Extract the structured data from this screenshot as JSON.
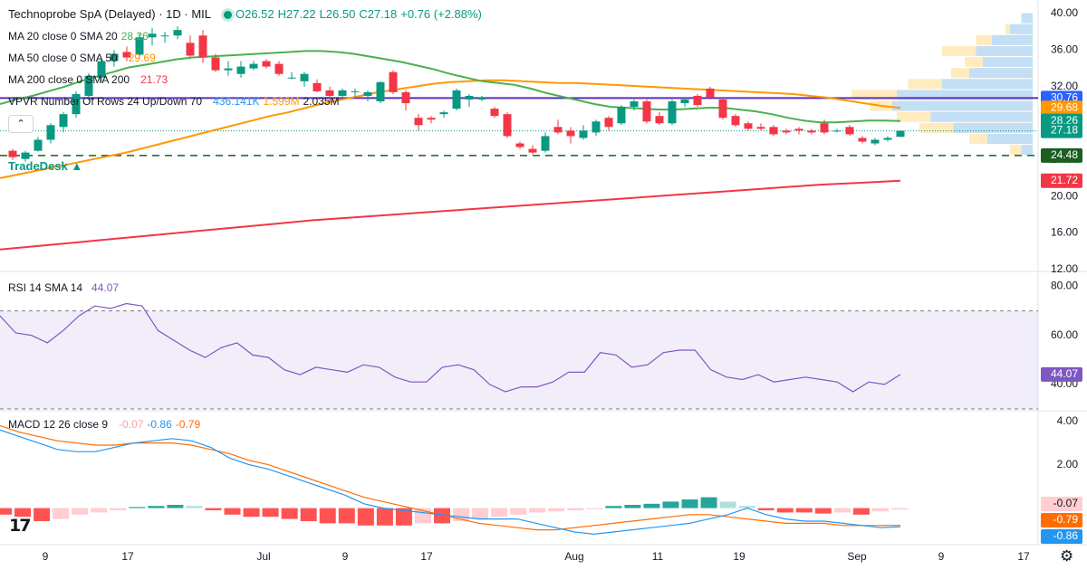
{
  "header": {
    "title": "Technoprobe SpA (Delayed) · 1D · MIL",
    "ohlc": {
      "o": "O26.52",
      "h": "H27.22",
      "l": "L26.50",
      "c": "C27.18",
      "chg": "+0.76 (+2.88%)"
    }
  },
  "indicators": {
    "ma20": {
      "label": "MA 20 close 0 SMA 20",
      "value": "28.26",
      "color": "#4caf50"
    },
    "ma50": {
      "label": "MA 50 close 0 SMA 50",
      "value": "29.69",
      "color": "#ff9800"
    },
    "ma200": {
      "label": "MA 200 close 0 SMA 200",
      "value": "21.73",
      "color": "#f23645"
    },
    "vpvr": {
      "label": "VPVR Number Of Rows 24 Up/Down 70",
      "v1": "436.141K",
      "v2": "1.599M",
      "v3": "2.035M"
    },
    "tradedesk": "TradeDesk"
  },
  "rsi": {
    "label": "RSI 14 SMA 14",
    "value": "44.07",
    "color": "#7e57c2"
  },
  "macd": {
    "label": "MACD 12 26 close 9",
    "hist": "-0.07",
    "macd": "-0.86",
    "signal": "-0.79"
  },
  "price_axis": {
    "ticks": [
      "40.00",
      "36.00",
      "32.00",
      "28.00",
      "24.00",
      "20.00",
      "16.00",
      "12.00"
    ],
    "badges": [
      {
        "text": "30.76",
        "value": 30.76,
        "color": "#2962ff"
      },
      {
        "text": "29.68",
        "value": 29.68,
        "color": "#ff9800"
      },
      {
        "text": "28.26",
        "value": 28.26,
        "color": "#089981"
      },
      {
        "text": "27.18",
        "value": 27.18,
        "color": "#089981"
      },
      {
        "text": "24.48",
        "value": 24.48,
        "color": "#1b5e20"
      },
      {
        "text": "21.72",
        "value": 21.72,
        "color": "#f23645"
      }
    ]
  },
  "rsi_axis": {
    "ticks": [
      "80.00",
      "60.00",
      "40.00"
    ],
    "badge": "44.07"
  },
  "macd_axis": {
    "ticks": [
      "4.00",
      "2.00"
    ],
    "badges": [
      {
        "text": "-0.07",
        "value": -0.07,
        "color": "#ffcdd2",
        "fg": "#131722"
      },
      {
        "text": "-0.79",
        "value": -0.79,
        "color": "#ff6d00",
        "fg": "#ffffff"
      },
      {
        "text": "-0.86",
        "value": -0.86,
        "color": "#2196f3",
        "fg": "#ffffff"
      }
    ]
  },
  "time_axis": {
    "labels": [
      "9",
      "17",
      "Jul",
      "9",
      "17",
      "Aug",
      "11",
      "19",
      "Sep",
      "9",
      "17"
    ]
  },
  "chart_data": {
    "type": "candlestick",
    "price_ylim": [
      12,
      40
    ],
    "candles": [
      {
        "o": 25.0,
        "h": 25.2,
        "l": 24.0,
        "c": 24.3
      },
      {
        "o": 24.1,
        "h": 25.0,
        "l": 23.8,
        "c": 24.8
      },
      {
        "o": 25.0,
        "h": 26.5,
        "l": 24.9,
        "c": 26.2
      },
      {
        "o": 26.2,
        "h": 28.0,
        "l": 25.8,
        "c": 27.8
      },
      {
        "o": 27.6,
        "h": 29.2,
        "l": 27.0,
        "c": 29.0
      },
      {
        "o": 29.0,
        "h": 31.5,
        "l": 28.6,
        "c": 31.2
      },
      {
        "o": 31.0,
        "h": 33.5,
        "l": 30.5,
        "c": 33.2
      },
      {
        "o": 33.0,
        "h": 35.0,
        "l": 32.5,
        "c": 34.8
      },
      {
        "o": 34.8,
        "h": 36.0,
        "l": 34.2,
        "c": 35.6
      },
      {
        "o": 35.8,
        "h": 36.4,
        "l": 34.8,
        "c": 35.2
      },
      {
        "o": 35.5,
        "h": 37.8,
        "l": 35.0,
        "c": 37.4
      },
      {
        "o": 37.4,
        "h": 38.4,
        "l": 36.5,
        "c": 37.8
      },
      {
        "o": 37.5,
        "h": 38.0,
        "l": 36.8,
        "c": 37.6
      },
      {
        "o": 37.6,
        "h": 38.6,
        "l": 37.2,
        "c": 38.2
      },
      {
        "o": 36.8,
        "h": 37.6,
        "l": 35.2,
        "c": 35.4
      },
      {
        "o": 37.6,
        "h": 38.2,
        "l": 34.6,
        "c": 35.2
      },
      {
        "o": 35.2,
        "h": 35.6,
        "l": 33.6,
        "c": 33.8
      },
      {
        "o": 33.8,
        "h": 34.8,
        "l": 33.2,
        "c": 34.0
      },
      {
        "o": 33.4,
        "h": 34.8,
        "l": 33.0,
        "c": 34.2
      },
      {
        "o": 34.0,
        "h": 34.8,
        "l": 33.8,
        "c": 34.5
      },
      {
        "o": 34.8,
        "h": 35.0,
        "l": 34.0,
        "c": 34.2
      },
      {
        "o": 34.5,
        "h": 34.8,
        "l": 33.2,
        "c": 33.4
      },
      {
        "o": 33.0,
        "h": 33.6,
        "l": 32.8,
        "c": 33.0
      },
      {
        "o": 32.6,
        "h": 33.6,
        "l": 32.0,
        "c": 33.4
      },
      {
        "o": 32.4,
        "h": 32.8,
        "l": 31.4,
        "c": 31.5
      },
      {
        "o": 31.6,
        "h": 32.0,
        "l": 30.4,
        "c": 31.0
      },
      {
        "o": 31.0,
        "h": 31.8,
        "l": 30.8,
        "c": 31.6
      },
      {
        "o": 31.4,
        "h": 31.8,
        "l": 30.8,
        "c": 31.5
      },
      {
        "o": 31.0,
        "h": 31.6,
        "l": 30.4,
        "c": 31.4
      },
      {
        "o": 30.4,
        "h": 32.6,
        "l": 30.2,
        "c": 32.5
      },
      {
        "o": 33.6,
        "h": 33.8,
        "l": 31.2,
        "c": 31.4
      },
      {
        "o": 31.4,
        "h": 31.6,
        "l": 29.4,
        "c": 30.2
      },
      {
        "o": 28.6,
        "h": 29.0,
        "l": 27.2,
        "c": 27.8
      },
      {
        "o": 28.6,
        "h": 28.8,
        "l": 28.0,
        "c": 28.4
      },
      {
        "o": 29.0,
        "h": 29.4,
        "l": 28.6,
        "c": 29.2
      },
      {
        "o": 29.6,
        "h": 31.8,
        "l": 29.4,
        "c": 31.6
      },
      {
        "o": 30.6,
        "h": 31.2,
        "l": 29.8,
        "c": 31.0
      },
      {
        "o": 30.6,
        "h": 31.0,
        "l": 30.4,
        "c": 30.8
      },
      {
        "o": 29.6,
        "h": 29.8,
        "l": 28.6,
        "c": 28.8
      },
      {
        "o": 29.0,
        "h": 29.2,
        "l": 26.4,
        "c": 26.6
      },
      {
        "o": 25.8,
        "h": 26.0,
        "l": 25.2,
        "c": 25.4
      },
      {
        "o": 25.2,
        "h": 25.6,
        "l": 24.6,
        "c": 24.8
      },
      {
        "o": 25.0,
        "h": 27.0,
        "l": 24.8,
        "c": 26.6
      },
      {
        "o": 27.6,
        "h": 28.4,
        "l": 26.8,
        "c": 27.0
      },
      {
        "o": 27.2,
        "h": 27.6,
        "l": 25.8,
        "c": 26.6
      },
      {
        "o": 26.4,
        "h": 27.8,
        "l": 26.2,
        "c": 27.2
      },
      {
        "o": 27.0,
        "h": 28.4,
        "l": 26.6,
        "c": 28.2
      },
      {
        "o": 28.6,
        "h": 28.8,
        "l": 27.2,
        "c": 27.6
      },
      {
        "o": 28.0,
        "h": 30.0,
        "l": 27.8,
        "c": 29.8
      },
      {
        "o": 29.8,
        "h": 30.6,
        "l": 29.4,
        "c": 30.4
      },
      {
        "o": 30.4,
        "h": 30.6,
        "l": 28.0,
        "c": 28.2
      },
      {
        "o": 28.8,
        "h": 29.2,
        "l": 27.8,
        "c": 28.0
      },
      {
        "o": 28.0,
        "h": 30.6,
        "l": 27.8,
        "c": 30.4
      },
      {
        "o": 30.2,
        "h": 30.8,
        "l": 29.8,
        "c": 30.6
      },
      {
        "o": 31.0,
        "h": 31.2,
        "l": 29.8,
        "c": 30.0
      },
      {
        "o": 31.8,
        "h": 32.0,
        "l": 30.6,
        "c": 30.8
      },
      {
        "o": 30.6,
        "h": 30.8,
        "l": 28.4,
        "c": 28.6
      },
      {
        "o": 28.8,
        "h": 29.0,
        "l": 27.6,
        "c": 27.8
      },
      {
        "o": 28.0,
        "h": 28.2,
        "l": 27.2,
        "c": 27.4
      },
      {
        "o": 27.6,
        "h": 28.0,
        "l": 27.2,
        "c": 27.4
      },
      {
        "o": 27.6,
        "h": 27.8,
        "l": 26.6,
        "c": 26.8
      },
      {
        "o": 27.2,
        "h": 27.4,
        "l": 26.8,
        "c": 27.0
      },
      {
        "o": 27.4,
        "h": 27.6,
        "l": 26.8,
        "c": 27.2
      },
      {
        "o": 27.2,
        "h": 27.4,
        "l": 26.8,
        "c": 27.0
      },
      {
        "o": 28.0,
        "h": 28.4,
        "l": 26.8,
        "c": 27.0
      },
      {
        "o": 27.2,
        "h": 27.4,
        "l": 27.0,
        "c": 27.2
      },
      {
        "o": 27.6,
        "h": 27.8,
        "l": 26.6,
        "c": 26.8
      },
      {
        "o": 26.4,
        "h": 26.6,
        "l": 25.8,
        "c": 26.0
      },
      {
        "o": 25.8,
        "h": 26.4,
        "l": 25.6,
        "c": 26.2
      },
      {
        "o": 26.2,
        "h": 26.6,
        "l": 26.0,
        "c": 26.4
      },
      {
        "o": 26.52,
        "h": 27.22,
        "l": 26.5,
        "c": 27.18
      }
    ],
    "ma20": [
      30.1,
      30.6,
      31.0,
      31.5,
      32.0,
      32.6,
      33.1,
      33.6,
      34.1,
      34.4,
      34.7,
      35.0,
      35.2,
      35.3,
      35.4,
      35.5,
      35.6,
      35.7,
      35.8,
      35.9,
      35.9,
      35.8,
      35.6,
      35.3,
      35.0,
      34.7,
      34.3,
      33.9,
      33.4,
      33.0,
      32.6,
      32.4,
      32.2,
      31.8,
      31.3,
      30.9,
      30.5,
      30.1,
      29.8,
      29.7,
      29.6,
      29.5,
      29.5,
      29.6,
      29.7,
      29.7,
      29.5,
      29.3,
      29.0,
      28.6,
      28.3,
      28.1,
      28.1,
      28.2,
      28.3,
      28.3,
      28.26
    ],
    "ma50": [
      22.0,
      22.4,
      22.8,
      23.2,
      23.6,
      24.0,
      24.4,
      24.8,
      25.3,
      25.8,
      26.3,
      26.8,
      27.3,
      27.8,
      28.3,
      28.8,
      29.2,
      29.7,
      30.2,
      30.6,
      31.0,
      31.4,
      31.7,
      32.0,
      32.3,
      32.5,
      32.6,
      32.7,
      32.7,
      32.6,
      32.5,
      32.4,
      32.4,
      32.3,
      32.2,
      32.1,
      32.0,
      31.9,
      31.8,
      31.7,
      31.6,
      31.5,
      31.4,
      31.3,
      31.2,
      31.0,
      30.8,
      30.5,
      30.2,
      29.9,
      29.69
    ],
    "ma200": [
      14.2,
      14.6,
      15.0,
      15.4,
      15.8,
      16.2,
      16.6,
      17.0,
      17.4,
      17.7,
      18.0,
      18.3,
      18.6,
      18.9,
      19.2,
      19.5,
      19.8,
      20.1,
      20.4,
      20.7,
      21.0,
      21.3,
      21.5,
      21.73
    ],
    "levels": {
      "poc": 30.76,
      "dashed": 24.48,
      "current": 27.18
    },
    "rsi": [
      68,
      61,
      60,
      57,
      62,
      68,
      72,
      71,
      73,
      72,
      62,
      58,
      54,
      51,
      55,
      57,
      52,
      51,
      46,
      44,
      47,
      46,
      45,
      48,
      47,
      43,
      41,
      41,
      47,
      48,
      46,
      40,
      37,
      39,
      39,
      41,
      45,
      45,
      53,
      52,
      47,
      48,
      53,
      54,
      54,
      46,
      43,
      42,
      44,
      41,
      42,
      43,
      42,
      41,
      37,
      41,
      40,
      44.07
    ],
    "rsi_ylim": [
      30,
      85
    ],
    "rsi_levels": [
      70,
      30
    ],
    "macd_line": [
      3.6,
      3.3,
      3.0,
      2.7,
      2.6,
      2.6,
      2.8,
      3.0,
      3.1,
      3.2,
      3.1,
      2.8,
      2.3,
      2.0,
      1.8,
      1.5,
      1.2,
      0.9,
      0.6,
      0.2,
      0.0,
      -0.1,
      -0.2,
      -0.3,
      -0.4,
      -0.5,
      -0.5,
      -0.5,
      -0.7,
      -0.9,
      -1.1,
      -1.2,
      -1.1,
      -1.0,
      -0.9,
      -0.8,
      -0.7,
      -0.5,
      -0.3,
      0.0,
      -0.3,
      -0.5,
      -0.6,
      -0.6,
      -0.7,
      -0.8,
      -0.9,
      -0.86
    ],
    "signal_line": [
      3.8,
      3.5,
      3.3,
      3.1,
      3.0,
      2.9,
      2.9,
      3.0,
      3.0,
      3.0,
      2.9,
      2.7,
      2.5,
      2.2,
      2.0,
      1.7,
      1.4,
      1.1,
      0.8,
      0.5,
      0.3,
      0.1,
      -0.1,
      -0.3,
      -0.5,
      -0.7,
      -0.8,
      -0.9,
      -1.0,
      -1.0,
      -0.9,
      -0.8,
      -0.7,
      -0.6,
      -0.5,
      -0.4,
      -0.3,
      -0.3,
      -0.4,
      -0.5,
      -0.6,
      -0.7,
      -0.7,
      -0.7,
      -0.8,
      -0.8,
      -0.8,
      -0.79
    ],
    "macd_hist": [
      -0.3,
      -0.4,
      -0.6,
      -0.5,
      -0.3,
      -0.2,
      -0.1,
      0.05,
      0.1,
      0.15,
      0.1,
      -0.1,
      -0.3,
      -0.4,
      -0.4,
      -0.5,
      -0.6,
      -0.7,
      -0.7,
      -0.8,
      -0.8,
      -0.8,
      -0.7,
      -0.7,
      -0.6,
      -0.5,
      -0.4,
      -0.3,
      -0.2,
      -0.15,
      -0.1,
      -0.05,
      0.1,
      0.15,
      0.2,
      0.3,
      0.4,
      0.5,
      0.3,
      0.1,
      -0.1,
      -0.2,
      -0.2,
      -0.25,
      -0.2,
      -0.3,
      -0.15,
      -0.07
    ],
    "macd_ylim": [
      -1.6,
      4.4
    ],
    "volume_profile": [
      {
        "p": 39.5,
        "up": 0.05,
        "dn": 0.04
      },
      {
        "p": 38.3,
        "up": 0.1,
        "dn": 0.12
      },
      {
        "p": 37.1,
        "up": 0.18,
        "dn": 0.25
      },
      {
        "p": 35.9,
        "up": 0.25,
        "dn": 0.4
      },
      {
        "p": 34.7,
        "up": 0.22,
        "dn": 0.3
      },
      {
        "p": 33.5,
        "up": 0.28,
        "dn": 0.36
      },
      {
        "p": 32.3,
        "up": 0.4,
        "dn": 0.55
      },
      {
        "p": 31.1,
        "up": 0.6,
        "dn": 0.8
      },
      {
        "p": 29.9,
        "up": 0.62,
        "dn": 0.72
      },
      {
        "p": 28.7,
        "up": 0.45,
        "dn": 0.6
      },
      {
        "p": 27.5,
        "up": 0.35,
        "dn": 0.5
      },
      {
        "p": 26.3,
        "up": 0.2,
        "dn": 0.28
      },
      {
        "p": 25.1,
        "up": 0.05,
        "dn": 0.1
      }
    ]
  }
}
